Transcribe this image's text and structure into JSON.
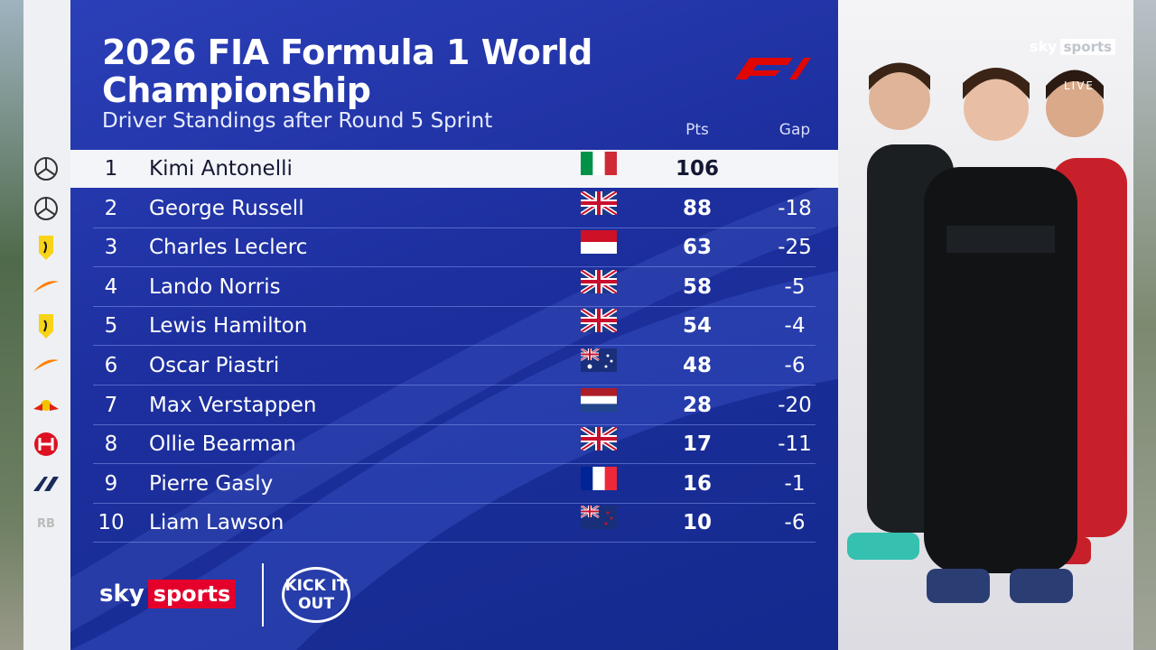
{
  "header": {
    "title": "2026 FIA Formula 1 World Championship",
    "subtitle": "Driver Standings after Round 5 Sprint"
  },
  "table": {
    "columns": {
      "pts": "Pts",
      "gap": "Gap"
    },
    "rows": [
      {
        "pos": 1,
        "driver": "Kimi Antonelli",
        "pts": 106
      },
      {
        "pos": 2,
        "driver": "George Russell",
        "pts": 88,
        "gap": -18
      },
      {
        "pos": 3,
        "driver": "Charles Leclerc",
        "pts": 63,
        "gap": -25
      },
      {
        "pos": 4,
        "driver": "Lando Norris",
        "pts": 58,
        "gap": -5
      },
      {
        "pos": 5,
        "driver": "Lewis Hamilton",
        "pts": 54,
        "gap": -4
      },
      {
        "pos": 6,
        "driver": "Oscar Piastri",
        "pts": 48,
        "gap": -6
      },
      {
        "pos": 7,
        "driver": "Max Verstappen",
        "pts": 28,
        "gap": -20
      },
      {
        "pos": 8,
        "driver": "Ollie Bearman",
        "pts": 17,
        "gap": -11
      },
      {
        "pos": 9,
        "driver": "Pierre Gasly",
        "pts": 16,
        "gap": -1
      },
      {
        "pos": 10,
        "driver": "Liam Lawson",
        "pts": 10,
        "gap": -6
      }
    ]
  },
  "branding": {
    "sky": "sky",
    "sports": "sports",
    "partner": "KICK IT OUT",
    "corner_sky": "sky",
    "corner_sports": "sports",
    "live": "LIVE"
  }
}
